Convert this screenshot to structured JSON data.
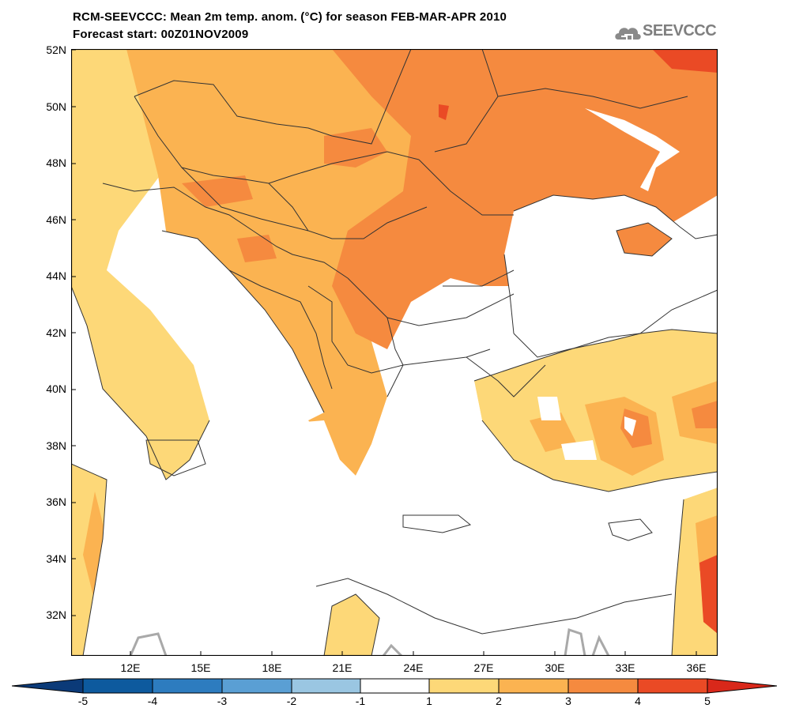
{
  "header": {
    "title_line1": "RCM-SEEVCCC: Mean 2m temp. anom. (°C) for season FEB-MAR-APR 2010",
    "title_line2": "Forecast start: 00Z01NOV2009"
  },
  "logo": {
    "text": "SEEVCCC",
    "icon": "cloud-icon"
  },
  "map": {
    "lat_labels": [
      "52N",
      "50N",
      "48N",
      "46N",
      "44N",
      "42N",
      "40N",
      "38N",
      "36N",
      "34N",
      "32N"
    ],
    "lon_labels": [
      "12E",
      "15E",
      "18E",
      "21E",
      "24E",
      "27E",
      "30E",
      "33E",
      "36E"
    ],
    "lat_range": [
      30.6,
      52
    ],
    "lon_range": [
      9.8,
      37.2
    ],
    "colors": {
      "sea": "#ffffff",
      "class_1_2": "#fdd878",
      "class_2_3": "#fbb351",
      "class_3_4": "#f58a3f",
      "class_4_5": "#ea4a25",
      "boundary": "#333333",
      "zero_contour": "#a9a9a9"
    }
  },
  "colorbar": {
    "labels": [
      "-5",
      "-4",
      "-3",
      "-2",
      "-1",
      "1",
      "2",
      "3",
      "4",
      "5"
    ],
    "colors": [
      "#0d5a9e",
      "#2d7cbf",
      "#5a9fd4",
      "#9ac6e2",
      "#ffffff",
      "#fdd878",
      "#fbb351",
      "#f58a3f",
      "#ea4a25"
    ],
    "under_color": "#0b3a78",
    "over_color": "#d9281a"
  }
}
